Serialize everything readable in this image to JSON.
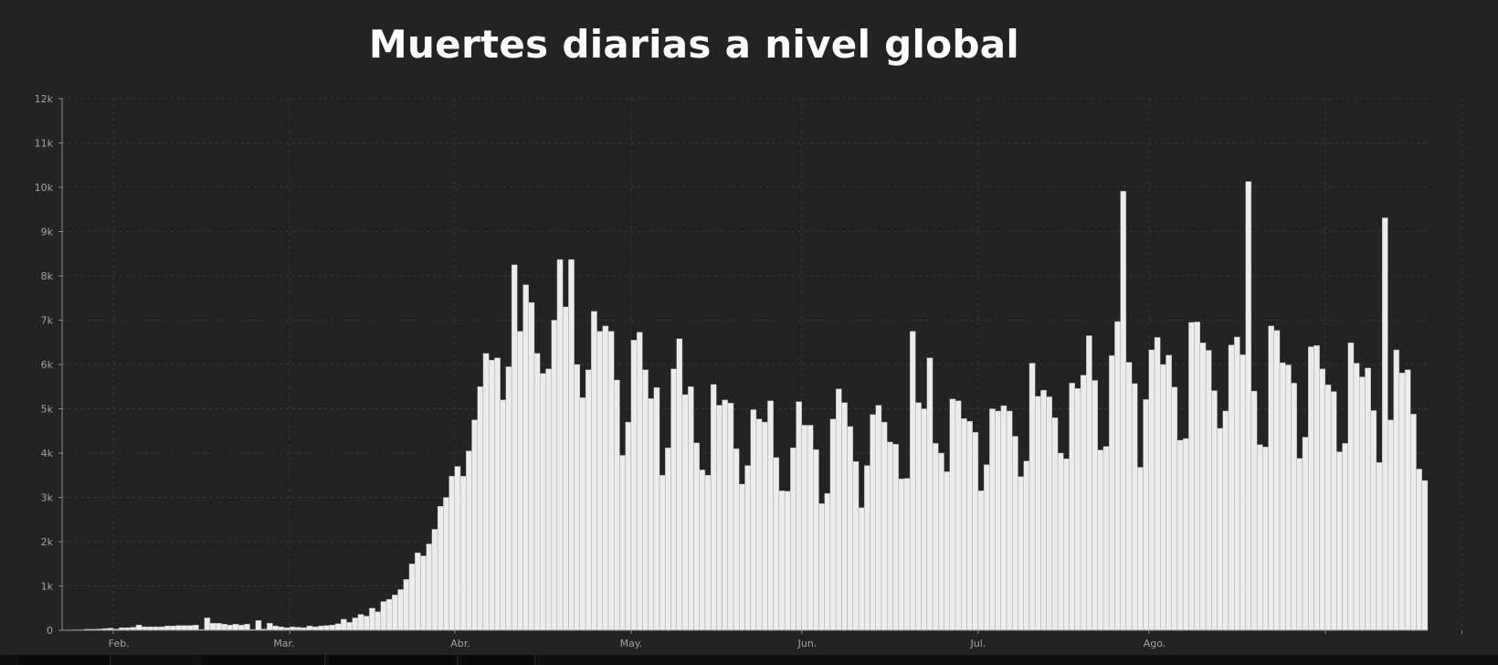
{
  "chart_data": {
    "type": "bar",
    "title": "Muertes diarias a nivel global",
    "xlabel": "",
    "ylabel": "",
    "ylim": [
      0,
      12000
    ],
    "yticks": [
      0,
      1000,
      2000,
      3000,
      4000,
      5000,
      6000,
      7000,
      8000,
      9000,
      10000,
      11000,
      12000
    ],
    "ytick_labels": [
      "0",
      "1k",
      "2k",
      "3k",
      "4k",
      "5k",
      "6k",
      "7k",
      "8k",
      "9k",
      "10k",
      "11k",
      "12k"
    ],
    "xtick_labels": [
      "Feb.",
      "Mar.",
      "Abr.",
      "May.",
      "Jun.",
      "Jul.",
      "Ago."
    ],
    "grid": true,
    "values": [
      8,
      10,
      12,
      15,
      25,
      26,
      30,
      40,
      50,
      30,
      60,
      60,
      70,
      120,
      80,
      80,
      80,
      80,
      100,
      100,
      110,
      110,
      110,
      120,
      20,
      280,
      160,
      160,
      140,
      120,
      140,
      120,
      140,
      20,
      220,
      30,
      160,
      100,
      80,
      60,
      80,
      70,
      60,
      100,
      80,
      100,
      110,
      120,
      150,
      250,
      180,
      280,
      360,
      320,
      500,
      420,
      650,
      700,
      800,
      920,
      1150,
      1500,
      1750,
      1680,
      1950,
      2280,
      2800,
      3000,
      3480,
      3700,
      3480,
      4050,
      4750,
      5500,
      6250,
      6100,
      6150,
      5200,
      5950,
      8250,
      6750,
      7800,
      7400,
      6250,
      5800,
      5900,
      7000,
      8370,
      7300,
      8370,
      6000,
      5250,
      5880,
      7200,
      6750,
      6870,
      6750,
      5650,
      3950,
      4700,
      6550,
      6730,
      5880,
      5230,
      5480,
      3500,
      4120,
      5900,
      6580,
      5320,
      5500,
      4230,
      3620,
      3500,
      5550,
      5080,
      5200,
      5130,
      4100,
      3300,
      3720,
      4980,
      4770,
      4700,
      5180,
      3900,
      3150,
      3140,
      4120,
      5160,
      4630,
      4630,
      4080,
      2860,
      3090,
      4770,
      5450,
      5140,
      4600,
      3810,
      2770,
      3720,
      4870,
      5080,
      4700,
      4250,
      4200,
      3420,
      3430,
      6750,
      5140,
      5000,
      6150,
      4220,
      4000,
      3580,
      5220,
      5180,
      4780,
      4720,
      4470,
      3150,
      3740,
      5000,
      4950,
      5070,
      4950,
      4380,
      3470,
      3820,
      6030,
      5280,
      5420,
      5270,
      4800,
      4000,
      3870,
      5580,
      5460,
      5760,
      6650,
      5640,
      4070,
      4150,
      6200,
      6970,
      9910,
      6050,
      5570,
      3680,
      5210,
      6330,
      6610,
      6000,
      6210,
      5490,
      4290,
      4330,
      6950,
      6960,
      6490,
      6320,
      5410,
      4560,
      4950,
      6440,
      6620,
      6220,
      10130,
      5400,
      4190,
      4140,
      6870,
      6770,
      6040,
      5990,
      5580,
      3880,
      4360,
      6400,
      6430,
      5900,
      5540,
      5390,
      4030,
      4220,
      6490,
      6030,
      5720,
      5920,
      4960,
      3790,
      9310,
      4750,
      6330,
      5810,
      5880,
      4880,
      3640,
      3380
    ]
  }
}
